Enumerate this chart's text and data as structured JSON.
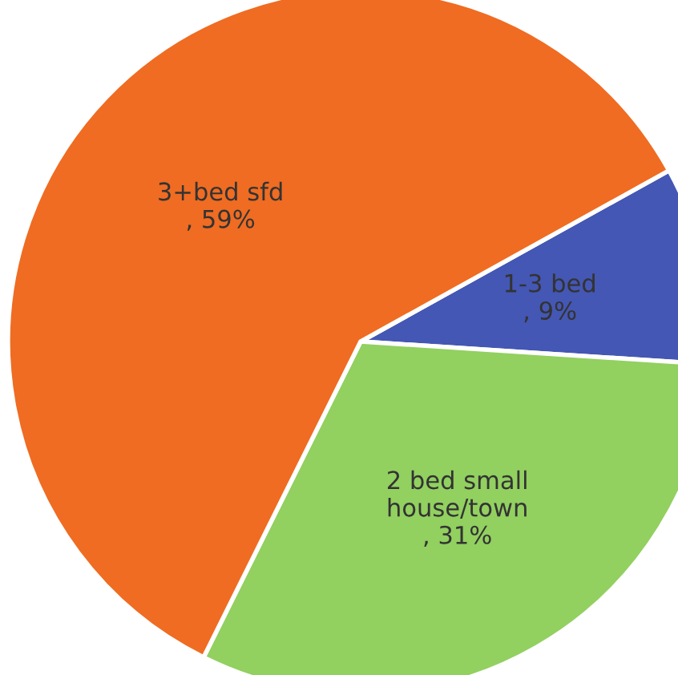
{
  "chart_data": {
    "type": "pie",
    "categories": [
      "1-3 bed",
      "2 bed small\nhouse/town",
      "3+bed sfd"
    ],
    "values": [
      9,
      31,
      59
    ],
    "value_labels": [
      ", 9%",
      ", 31%",
      ", 59%"
    ],
    "colors": [
      "#4457b4",
      "#92d060",
      "#ef6c22"
    ]
  }
}
